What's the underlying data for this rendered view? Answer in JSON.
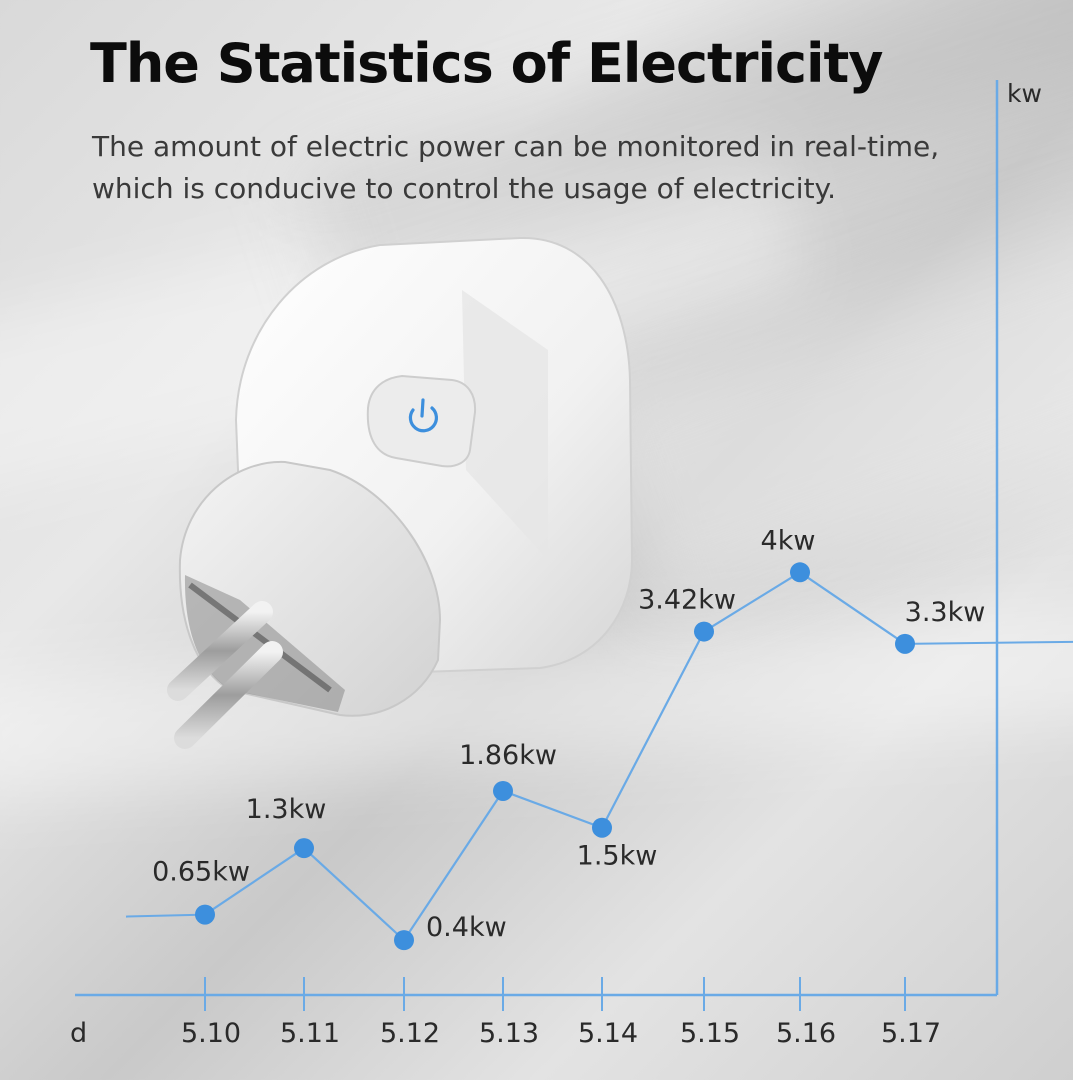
{
  "header": {
    "title": "The Statistics of Electricity",
    "subtitle_line1": "The amount of electric power can be monitored in real-time,",
    "subtitle_line2": "which is conducive to control the usage of electricity."
  },
  "colors": {
    "accent": "#3d8fdd",
    "axis": "#6aaae6",
    "text": "#2a2a2a",
    "title": "#0c0c0c"
  },
  "product": {
    "name": "smart-plug",
    "button_icon": "power-icon"
  },
  "chart_data": {
    "type": "line",
    "xlabel": "d",
    "ylabel": "kw",
    "categories": [
      "5.10",
      "5.11",
      "5.12",
      "5.13",
      "5.14",
      "5.15",
      "5.16",
      "5.17"
    ],
    "values": [
      0.65,
      1.3,
      0.4,
      1.86,
      1.5,
      3.42,
      4,
      3.3
    ],
    "point_labels": [
      "0.65kw",
      "1.3kw",
      "0.4kw",
      "1.86kw",
      "1.5kw",
      "3.42kw",
      "4kw",
      "3.3kw"
    ],
    "ylim": [
      0,
      4.6
    ],
    "grid": false,
    "legend": "none"
  }
}
